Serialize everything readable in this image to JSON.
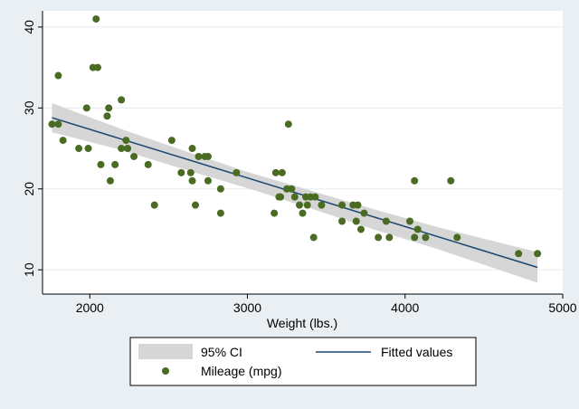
{
  "chart_data": {
    "type": "scatter",
    "title": "",
    "xlabel": "Weight (lbs.)",
    "ylabel": "",
    "xlim": [
      1700,
      5000
    ],
    "ylim": [
      7,
      42
    ],
    "x_ticks": [
      2000,
      3000,
      4000,
      5000
    ],
    "y_ticks": [
      10,
      20,
      30,
      40
    ],
    "grid": "horizontal",
    "legend_position": "bottom",
    "colors": {
      "points": "#4a6b22",
      "fit_line": "#1a476f",
      "ci_band": "#d6d6d6",
      "plot_bg": "#ffffff",
      "outer_bg": "#e9eff3"
    },
    "series": [
      {
        "name": "Mileage (mpg)",
        "kind": "scatter",
        "points": [
          [
            1760,
            28
          ],
          [
            1800,
            28
          ],
          [
            1800,
            34
          ],
          [
            1830,
            26
          ],
          [
            1930,
            25
          ],
          [
            1980,
            30
          ],
          [
            1990,
            25
          ],
          [
            2020,
            35
          ],
          [
            2040,
            41
          ],
          [
            2050,
            35
          ],
          [
            2070,
            23
          ],
          [
            2110,
            29
          ],
          [
            2120,
            30
          ],
          [
            2130,
            21
          ],
          [
            2160,
            23
          ],
          [
            2200,
            25
          ],
          [
            2200,
            31
          ],
          [
            2230,
            26
          ],
          [
            2240,
            25
          ],
          [
            2280,
            24
          ],
          [
            2370,
            23
          ],
          [
            2410,
            18
          ],
          [
            2520,
            26
          ],
          [
            2580,
            22
          ],
          [
            2640,
            22
          ],
          [
            2650,
            25
          ],
          [
            2650,
            21
          ],
          [
            2670,
            18
          ],
          [
            2690,
            24
          ],
          [
            2730,
            24
          ],
          [
            2750,
            24
          ],
          [
            2750,
            21
          ],
          [
            2830,
            20
          ],
          [
            2830,
            17
          ],
          [
            2930,
            22
          ],
          [
            3170,
            17
          ],
          [
            3180,
            22
          ],
          [
            3200,
            19
          ],
          [
            3210,
            19
          ],
          [
            3220,
            22
          ],
          [
            3250,
            20
          ],
          [
            3260,
            28
          ],
          [
            3280,
            20
          ],
          [
            3300,
            19
          ],
          [
            3330,
            18
          ],
          [
            3350,
            17
          ],
          [
            3370,
            19
          ],
          [
            3380,
            18
          ],
          [
            3400,
            19
          ],
          [
            3420,
            14
          ],
          [
            3430,
            19
          ],
          [
            3470,
            18
          ],
          [
            3600,
            16
          ],
          [
            3600,
            18
          ],
          [
            3670,
            18
          ],
          [
            3690,
            16
          ],
          [
            3700,
            18
          ],
          [
            3720,
            15
          ],
          [
            3740,
            17
          ],
          [
            3830,
            14
          ],
          [
            3880,
            16
          ],
          [
            3900,
            14
          ],
          [
            4030,
            16
          ],
          [
            4060,
            14
          ],
          [
            4060,
            21
          ],
          [
            4080,
            15
          ],
          [
            4130,
            14
          ],
          [
            4290,
            21
          ],
          [
            4330,
            14
          ],
          [
            4720,
            12
          ],
          [
            4840,
            12
          ]
        ]
      },
      {
        "name": "Fitted values",
        "kind": "line",
        "points": [
          [
            1760,
            28.8
          ],
          [
            4840,
            10.3
          ]
        ]
      },
      {
        "name": "95% CI",
        "kind": "band",
        "upper": [
          [
            1760,
            30.6
          ],
          [
            2200,
            27.4
          ],
          [
            2600,
            24.7
          ],
          [
            3000,
            22.1
          ],
          [
            3400,
            19.8
          ],
          [
            3800,
            17.5
          ],
          [
            4200,
            15.3
          ],
          [
            4840,
            12.2
          ]
        ],
        "lower": [
          [
            1760,
            27.0
          ],
          [
            2200,
            24.8
          ],
          [
            2600,
            22.4
          ],
          [
            3000,
            20.1
          ],
          [
            3400,
            17.6
          ],
          [
            3800,
            15.0
          ],
          [
            4200,
            12.6
          ],
          [
            4840,
            8.4
          ]
        ]
      }
    ]
  },
  "legend": {
    "ci_label": "95% CI",
    "fit_label": "Fitted values",
    "points_label": "Mileage (mpg)"
  }
}
